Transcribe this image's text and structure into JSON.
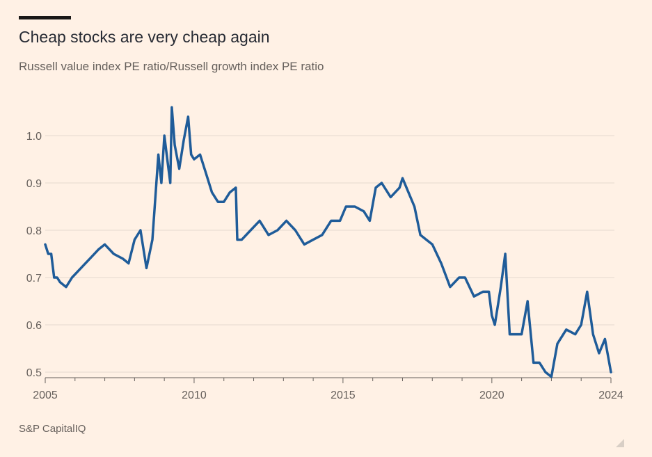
{
  "header": {
    "title": "Cheap stocks are very cheap again",
    "subtitle": "Russell value index PE ratio/Russell growth index PE ratio"
  },
  "footer": {
    "source": "S&P CapitalIQ"
  },
  "colors": {
    "line": "#1f5c99",
    "background": "#fff1e5",
    "grid": "#e6d9ce",
    "text": "#66605c"
  },
  "chart_data": {
    "type": "line",
    "title": "Cheap stocks are very cheap again",
    "subtitle": "Russell value index PE ratio/Russell growth index PE ratio",
    "xlim": [
      2005,
      2024
    ],
    "ylim": [
      0.5,
      1.0
    ],
    "x_ticks": [
      2005,
      2010,
      2015,
      2020,
      2024
    ],
    "y_ticks": [
      0.5,
      0.6,
      0.7,
      0.8,
      0.9,
      1.0
    ],
    "grid": true,
    "legend": "none",
    "series": [
      {
        "x": [
          2005.0,
          2005.1,
          2005.2,
          2005.3,
          2005.4,
          2005.5,
          2005.7,
          2005.9,
          2006.2,
          2006.5,
          2006.8,
          2007.0,
          2007.3,
          2007.6,
          2007.8,
          2008.0,
          2008.2,
          2008.4,
          2008.6,
          2008.8,
          2008.9,
          2009.0,
          2009.1,
          2009.2,
          2009.25,
          2009.35,
          2009.5,
          2009.65,
          2009.8,
          2009.9,
          2010.0,
          2010.2,
          2010.4,
          2010.6,
          2010.8,
          2011.0,
          2011.2,
          2011.4,
          2011.45,
          2011.6,
          2011.9,
          2012.2,
          2012.5,
          2012.8,
          2013.1,
          2013.4,
          2013.7,
          2014.0,
          2014.3,
          2014.6,
          2014.9,
          2015.1,
          2015.4,
          2015.7,
          2015.9,
          2016.1,
          2016.3,
          2016.6,
          2016.9,
          2017.0,
          2017.2,
          2017.4,
          2017.6,
          2017.8,
          2018.0,
          2018.3,
          2018.6,
          2018.9,
          2019.1,
          2019.4,
          2019.7,
          2019.9,
          2020.0,
          2020.1,
          2020.3,
          2020.45,
          2020.6,
          2020.8,
          2021.0,
          2021.2,
          2021.4,
          2021.6,
          2021.8,
          2022.0,
          2022.2,
          2022.5,
          2022.8,
          2023.0,
          2023.2,
          2023.4,
          2023.6,
          2023.8,
          2024.0
        ],
        "values": [
          0.77,
          0.75,
          0.75,
          0.7,
          0.7,
          0.69,
          0.68,
          0.7,
          0.72,
          0.74,
          0.76,
          0.77,
          0.75,
          0.74,
          0.73,
          0.78,
          0.8,
          0.72,
          0.78,
          0.96,
          0.9,
          1.0,
          0.95,
          0.9,
          1.06,
          0.98,
          0.93,
          0.99,
          1.04,
          0.96,
          0.95,
          0.96,
          0.92,
          0.88,
          0.86,
          0.86,
          0.88,
          0.89,
          0.78,
          0.78,
          0.8,
          0.82,
          0.79,
          0.8,
          0.82,
          0.8,
          0.77,
          0.78,
          0.79,
          0.82,
          0.82,
          0.85,
          0.85,
          0.84,
          0.82,
          0.89,
          0.9,
          0.87,
          0.89,
          0.91,
          0.88,
          0.85,
          0.79,
          0.78,
          0.77,
          0.73,
          0.68,
          0.7,
          0.7,
          0.66,
          0.67,
          0.67,
          0.62,
          0.6,
          0.68,
          0.75,
          0.58,
          0.58,
          0.58,
          0.65,
          0.52,
          0.52,
          0.5,
          0.49,
          0.56,
          0.59,
          0.58,
          0.6,
          0.67,
          0.58,
          0.54,
          0.57,
          0.5
        ]
      }
    ]
  }
}
